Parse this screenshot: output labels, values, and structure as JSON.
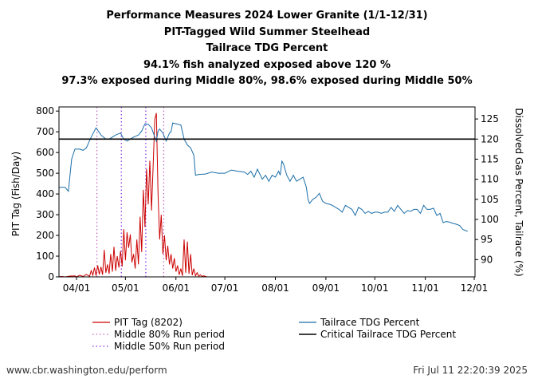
{
  "chart_data": {
    "type": "line",
    "title_lines": [
      "Performance Measures 2024 Lower Granite (1/1-12/31)",
      "PIT-Tagged Wild Summer Steelhead",
      "Tailrace TDG Percent",
      "94.1% fish analyzed exposed above 120 %",
      "97.3% exposed during Middle 80%, 98.6% exposed during Middle 50%"
    ],
    "ylabel_left": "PIT Tag (Fish/Day)",
    "ylabel_right": "Dissolved Gas Percent, Tailrace (%)",
    "ylim_left": [
      0,
      820
    ],
    "ylim_right": [
      85.7,
      128
    ],
    "yticks_left": [
      "0",
      "100",
      "200",
      "300",
      "400",
      "500",
      "600",
      "700",
      "800"
    ],
    "yticks_right": [
      "90",
      "95",
      "100",
      "105",
      "110",
      "115",
      "120",
      "125"
    ],
    "xticks": [
      "04/01",
      "05/01",
      "06/01",
      "07/01",
      "08/01",
      "09/01",
      "10/01",
      "11/01",
      "12/01"
    ],
    "critical_tdg": 120,
    "middle80_days": [
      25.5,
      66.5
    ],
    "middle50_days": [
      40.5,
      55.5
    ],
    "series": [
      {
        "name": "PIT Tag (8202)",
        "color": "#cc0000",
        "points": [
          [
            0,
            0
          ],
          [
            4,
            2
          ],
          [
            6,
            0
          ],
          [
            9,
            4
          ],
          [
            12,
            5
          ],
          [
            13,
            0
          ],
          [
            15,
            8
          ],
          [
            17,
            2
          ],
          [
            19,
            12
          ],
          [
            21,
            3
          ],
          [
            22,
            30
          ],
          [
            23,
            8
          ],
          [
            24,
            45
          ],
          [
            25,
            6
          ],
          [
            26,
            55
          ],
          [
            27,
            12
          ],
          [
            28,
            48
          ],
          [
            29,
            10
          ],
          [
            30,
            130
          ],
          [
            31,
            20
          ],
          [
            32,
            60
          ],
          [
            33,
            15
          ],
          [
            34,
            110
          ],
          [
            35,
            25
          ],
          [
            36,
            145
          ],
          [
            37,
            30
          ],
          [
            38,
            100
          ],
          [
            39,
            45
          ],
          [
            40,
            125
          ],
          [
            41,
            50
          ],
          [
            42,
            230
          ],
          [
            43,
            80
          ],
          [
            44,
            215
          ],
          [
            45,
            140
          ],
          [
            46,
            205
          ],
          [
            47,
            70
          ],
          [
            48,
            110
          ],
          [
            49,
            40
          ],
          [
            50,
            180
          ],
          [
            51,
            60
          ],
          [
            52,
            290
          ],
          [
            53,
            120
          ],
          [
            54,
            420
          ],
          [
            55,
            240
          ],
          [
            56,
            520
          ],
          [
            57,
            350
          ],
          [
            58,
            560
          ],
          [
            59,
            320
          ],
          [
            60,
            530
          ],
          [
            61,
            760
          ],
          [
            62,
            790
          ],
          [
            63,
            400
          ],
          [
            64,
            180
          ],
          [
            65,
            300
          ],
          [
            66,
            110
          ],
          [
            67,
            200
          ],
          [
            68,
            80
          ],
          [
            69,
            150
          ],
          [
            70,
            60
          ],
          [
            71,
            110
          ],
          [
            72,
            40
          ],
          [
            73,
            90
          ],
          [
            74,
            25
          ],
          [
            75,
            55
          ],
          [
            76,
            10
          ],
          [
            77,
            40
          ],
          [
            78,
            5
          ],
          [
            79,
            180
          ],
          [
            80,
            20
          ],
          [
            81,
            170
          ],
          [
            82,
            15
          ],
          [
            83,
            110
          ],
          [
            84,
            8
          ],
          [
            85,
            40
          ],
          [
            86,
            5
          ],
          [
            87,
            20
          ],
          [
            88,
            3
          ],
          [
            89,
            10
          ],
          [
            90,
            2
          ],
          [
            91,
            5
          ],
          [
            93,
            0
          ],
          [
            99,
            0
          ]
        ]
      },
      {
        "name": "Tailrace TDG Percent",
        "color": "#1a6ea8",
        "points": [
          [
            0,
            109
          ],
          [
            2,
            108
          ],
          [
            4,
            108
          ],
          [
            6,
            108
          ],
          [
            8,
            107
          ],
          [
            10,
            115
          ],
          [
            12,
            117.5
          ],
          [
            15,
            117.5
          ],
          [
            17,
            117.2
          ],
          [
            19,
            117.8
          ],
          [
            22,
            120.5
          ],
          [
            25,
            122.8
          ],
          [
            28,
            121
          ],
          [
            31,
            120
          ],
          [
            33,
            120
          ],
          [
            35,
            120.5
          ],
          [
            37,
            121
          ],
          [
            40,
            121.5
          ],
          [
            42,
            120
          ],
          [
            44,
            119.5
          ],
          [
            46,
            120
          ],
          [
            48,
            120.5
          ],
          [
            51,
            121
          ],
          [
            53,
            122
          ],
          [
            55,
            123.8
          ],
          [
            57,
            123.7
          ],
          [
            59,
            122.8
          ],
          [
            61,
            120.5
          ],
          [
            62,
            119.5
          ],
          [
            63,
            122
          ],
          [
            64,
            122.5
          ],
          [
            66,
            121.5
          ],
          [
            68,
            119.5
          ],
          [
            70,
            121.5
          ],
          [
            71,
            121.8
          ],
          [
            72,
            124
          ],
          [
            74,
            123.8
          ],
          [
            77,
            123.5
          ],
          [
            79,
            120
          ],
          [
            81,
            118.5
          ],
          [
            83,
            117.8
          ],
          [
            85,
            116
          ],
          [
            86,
            111
          ],
          [
            88,
            111.2
          ],
          [
            92,
            111.3
          ],
          [
            96,
            111.8
          ],
          [
            100,
            111.5
          ],
          [
            104,
            111.5
          ],
          [
            108,
            112.3
          ],
          [
            112,
            112
          ],
          [
            116,
            111.8
          ],
          [
            118,
            111.2
          ],
          [
            120,
            112
          ],
          [
            122,
            110.5
          ],
          [
            124,
            112.5
          ],
          [
            127,
            110
          ],
          [
            129,
            111
          ],
          [
            131,
            109.5
          ],
          [
            133,
            111
          ],
          [
            135,
            110.5
          ],
          [
            137,
            112
          ],
          [
            138,
            111
          ],
          [
            139,
            114.5
          ],
          [
            140,
            113.8
          ],
          [
            142,
            111
          ],
          [
            144,
            109.5
          ],
          [
            146,
            111
          ],
          [
            148,
            109.5
          ],
          [
            150,
            110
          ],
          [
            152,
            110.5
          ],
          [
            154,
            108
          ],
          [
            155,
            105
          ],
          [
            156,
            104
          ],
          [
            158,
            105
          ],
          [
            160,
            105.5
          ],
          [
            162,
            106.5
          ],
          [
            164,
            104.5
          ],
          [
            166,
            104
          ],
          [
            168,
            103.8
          ],
          [
            170,
            103.5
          ],
          [
            172,
            103
          ],
          [
            174,
            102.5
          ],
          [
            176,
            101.8
          ],
          [
            178,
            103.5
          ],
          [
            180,
            103
          ],
          [
            182,
            102.5
          ],
          [
            184,
            101
          ],
          [
            186,
            103
          ],
          [
            188,
            102.5
          ],
          [
            190,
            101.5
          ],
          [
            192,
            102
          ],
          [
            194,
            101.5
          ],
          [
            196,
            101.8
          ],
          [
            198,
            101.8
          ],
          [
            200,
            101.5
          ],
          [
            202,
            101.8
          ],
          [
            204,
            101.8
          ],
          [
            206,
            103
          ],
          [
            208,
            102
          ],
          [
            210,
            103.5
          ],
          [
            212,
            102.5
          ],
          [
            214,
            101.5
          ],
          [
            216,
            102.2
          ],
          [
            218,
            102
          ],
          [
            220,
            102.5
          ],
          [
            222,
            102.5
          ],
          [
            224,
            101.5
          ],
          [
            226,
            103.5
          ],
          [
            228,
            102.5
          ],
          [
            230,
            102.5
          ],
          [
            232,
            102.8
          ],
          [
            234,
            101
          ],
          [
            236,
            101.5
          ],
          [
            238,
            99.2
          ],
          [
            240,
            99.5
          ],
          [
            242,
            99.3
          ],
          [
            244,
            99
          ],
          [
            246,
            98.8
          ],
          [
            248,
            98.5
          ],
          [
            250,
            97.5
          ],
          [
            252,
            97.2
          ],
          [
            253,
            97
          ]
        ]
      },
      {
        "name": "Critical Tailrace TDG Percent",
        "color": "#000000"
      }
    ],
    "legend": {
      "pit": "PIT Tag (8202)",
      "mid80": "Middle 80% Run period",
      "mid50": "Middle 50% Run period",
      "tdg": "Tailrace TDG Percent",
      "critical": "Critical Tailrace TDG Percent"
    },
    "colors": {
      "pit": "#cc0000",
      "tdg": "#1a6ea8",
      "mid80": "#c060c0",
      "mid50": "#8a2be2",
      "critical": "#000000"
    }
  },
  "footer": {
    "url": "www.cbr.washington.edu/perform",
    "timestamp": "Fri Jul 11 22:20:39 2025"
  }
}
